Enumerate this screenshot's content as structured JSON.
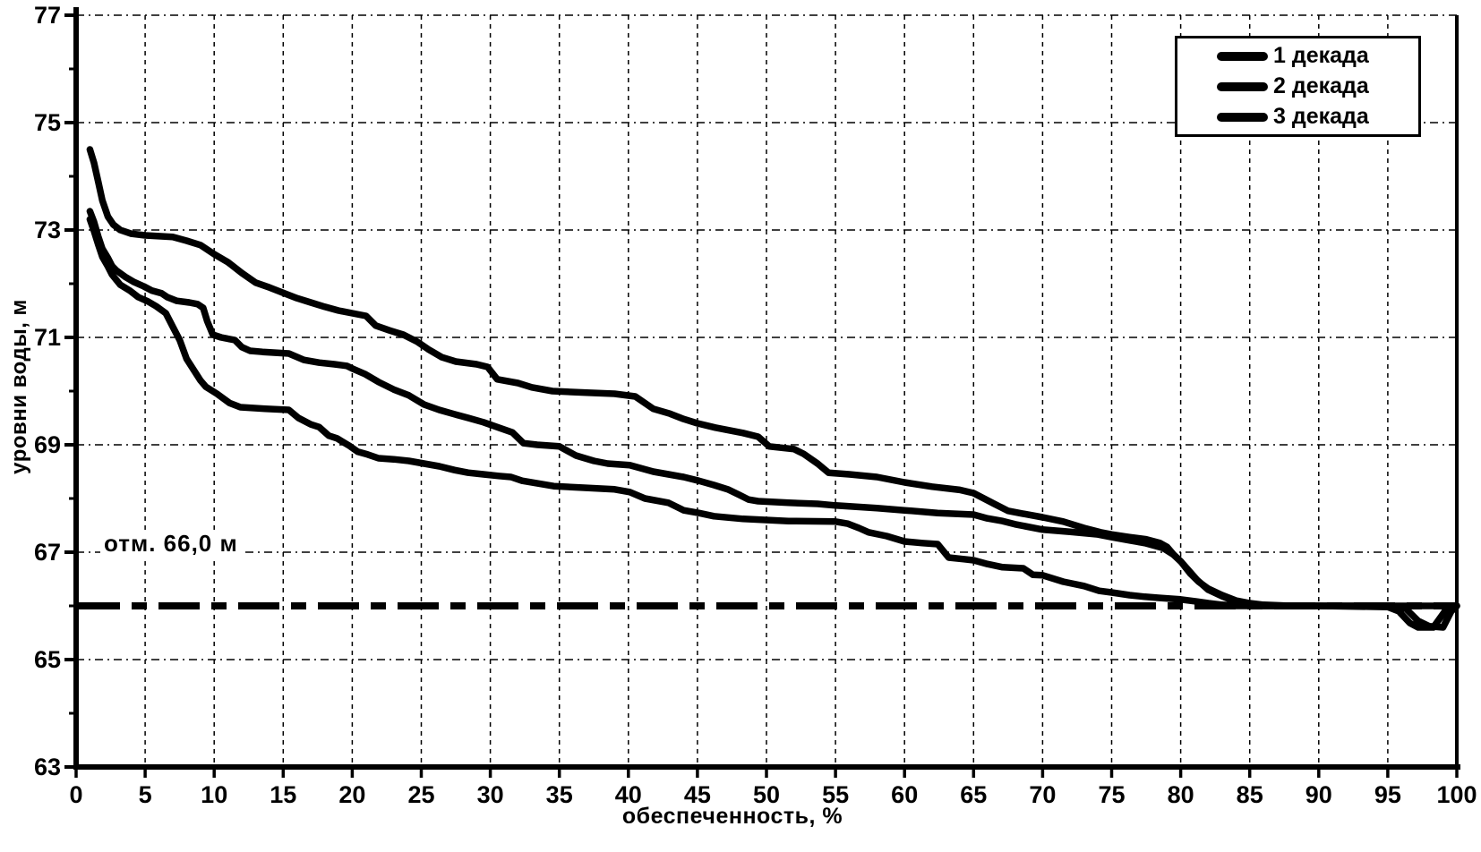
{
  "colors": {
    "line": "#000000",
    "background": "#ffffff",
    "grid": "#000000"
  },
  "chart_data": {
    "type": "line",
    "xlabel": "обеспеченность, %",
    "ylabel": "уровни воды, м",
    "xlim": [
      0,
      100
    ],
    "ylim": [
      63,
      77
    ],
    "x_ticks": [
      0,
      5,
      10,
      15,
      20,
      25,
      30,
      35,
      40,
      45,
      50,
      55,
      60,
      65,
      70,
      75,
      80,
      85,
      90,
      95,
      100
    ],
    "y_ticks": [
      63,
      65,
      67,
      69,
      71,
      73,
      75,
      77
    ],
    "y_minor_ticks": [
      64,
      66,
      68,
      70,
      72,
      74,
      76
    ],
    "grid": "both-dashed",
    "legend_position": "top-right",
    "ref_line": {
      "value": 66.0,
      "label": "отм. 66,0 м",
      "style": "dash-dot-bold"
    },
    "legend": {
      "items": [
        {
          "label": "1 декада"
        },
        {
          "label": "2 декада"
        },
        {
          "label": "3 декада"
        }
      ]
    },
    "series": [
      {
        "name": "1 декада",
        "points": [
          [
            1,
            74.5
          ],
          [
            1.3,
            74.25
          ],
          [
            1.6,
            73.9
          ],
          [
            1.9,
            73.55
          ],
          [
            2.3,
            73.25
          ],
          [
            2.7,
            73.1
          ],
          [
            3.2,
            73.0
          ],
          [
            4,
            72.93
          ],
          [
            5,
            72.9
          ],
          [
            7,
            72.87
          ],
          [
            8,
            72.8
          ],
          [
            9,
            72.72
          ],
          [
            10,
            72.55
          ],
          [
            11,
            72.4
          ],
          [
            12,
            72.2
          ],
          [
            13,
            72.02
          ],
          [
            14,
            71.93
          ],
          [
            15,
            71.83
          ],
          [
            16,
            71.73
          ],
          [
            17,
            71.65
          ],
          [
            18,
            71.57
          ],
          [
            19,
            71.5
          ],
          [
            20,
            71.45
          ],
          [
            21,
            71.4
          ],
          [
            21.7,
            71.22
          ],
          [
            22.7,
            71.13
          ],
          [
            23.7,
            71.05
          ],
          [
            24.7,
            70.92
          ],
          [
            25.5,
            70.78
          ],
          [
            26.5,
            70.63
          ],
          [
            27.5,
            70.55
          ],
          [
            29,
            70.5
          ],
          [
            29.8,
            70.45
          ],
          [
            30.5,
            70.22
          ],
          [
            32,
            70.15
          ],
          [
            33,
            70.07
          ],
          [
            34.5,
            70.0
          ],
          [
            37,
            69.97
          ],
          [
            39,
            69.95
          ],
          [
            40.5,
            69.9
          ],
          [
            41.8,
            69.67
          ],
          [
            43,
            69.58
          ],
          [
            44,
            69.48
          ],
          [
            45,
            69.4
          ],
          [
            46.3,
            69.32
          ],
          [
            48.3,
            69.22
          ],
          [
            49.4,
            69.15
          ],
          [
            50.2,
            68.97
          ],
          [
            52,
            68.92
          ],
          [
            52.7,
            68.83
          ],
          [
            53.7,
            68.65
          ],
          [
            54.5,
            68.48
          ],
          [
            56,
            68.45
          ],
          [
            58,
            68.4
          ],
          [
            60,
            68.3
          ],
          [
            62,
            68.22
          ],
          [
            64,
            68.16
          ],
          [
            65,
            68.1
          ],
          [
            66.5,
            67.9
          ],
          [
            67.5,
            67.77
          ],
          [
            68.5,
            67.72
          ],
          [
            70,
            67.65
          ],
          [
            71.5,
            67.57
          ],
          [
            73,
            67.45
          ],
          [
            74.2,
            67.37
          ],
          [
            75,
            67.33
          ],
          [
            76.3,
            67.28
          ],
          [
            77.5,
            67.24
          ],
          [
            78.5,
            67.17
          ],
          [
            79,
            67.1
          ],
          [
            79.5,
            66.95
          ],
          [
            80,
            66.83
          ],
          [
            80.7,
            66.6
          ],
          [
            81.3,
            66.45
          ],
          [
            82,
            66.32
          ],
          [
            83,
            66.2
          ],
          [
            84,
            66.1
          ],
          [
            85,
            66.05
          ],
          [
            86,
            66.02
          ],
          [
            88,
            66.0
          ],
          [
            100,
            66.0
          ]
        ]
      },
      {
        "name": "2 декада",
        "points": [
          [
            1,
            73.35
          ],
          [
            1.3,
            73.15
          ],
          [
            1.6,
            72.88
          ],
          [
            1.9,
            72.65
          ],
          [
            2.3,
            72.48
          ],
          [
            2.6,
            72.33
          ],
          [
            2.9,
            72.25
          ],
          [
            3.6,
            72.12
          ],
          [
            4.2,
            72.03
          ],
          [
            4.9,
            71.95
          ],
          [
            5.5,
            71.87
          ],
          [
            6.2,
            71.82
          ],
          [
            6.6,
            71.75
          ],
          [
            7.3,
            71.68
          ],
          [
            8.2,
            71.65
          ],
          [
            8.8,
            71.62
          ],
          [
            9.2,
            71.55
          ],
          [
            9.5,
            71.3
          ],
          [
            9.9,
            71.05
          ],
          [
            10.5,
            71.0
          ],
          [
            11.5,
            70.95
          ],
          [
            12,
            70.82
          ],
          [
            12.6,
            70.75
          ],
          [
            13.5,
            70.73
          ],
          [
            15.4,
            70.7
          ],
          [
            16.5,
            70.58
          ],
          [
            17.6,
            70.53
          ],
          [
            18.7,
            70.5
          ],
          [
            19.6,
            70.47
          ],
          [
            20,
            70.42
          ],
          [
            20.9,
            70.32
          ],
          [
            21.9,
            70.17
          ],
          [
            23,
            70.03
          ],
          [
            24.1,
            69.92
          ],
          [
            25.2,
            69.75
          ],
          [
            26.3,
            69.65
          ],
          [
            27.4,
            69.57
          ],
          [
            28.4,
            69.5
          ],
          [
            29.5,
            69.42
          ],
          [
            30.6,
            69.32
          ],
          [
            31.6,
            69.23
          ],
          [
            32.4,
            69.03
          ],
          [
            33.4,
            69.0
          ],
          [
            35,
            68.97
          ],
          [
            36.2,
            68.8
          ],
          [
            37.5,
            68.7
          ],
          [
            38.5,
            68.65
          ],
          [
            40.1,
            68.62
          ],
          [
            41.8,
            68.5
          ],
          [
            42.9,
            68.45
          ],
          [
            44,
            68.4
          ],
          [
            45.1,
            68.33
          ],
          [
            46.2,
            68.25
          ],
          [
            47.2,
            68.17
          ],
          [
            48,
            68.07
          ],
          [
            48.7,
            67.98
          ],
          [
            49.4,
            67.95
          ],
          [
            51.6,
            67.92
          ],
          [
            53.7,
            67.9
          ],
          [
            55,
            67.87
          ],
          [
            58,
            67.82
          ],
          [
            60,
            67.78
          ],
          [
            62.4,
            67.73
          ],
          [
            65,
            67.7
          ],
          [
            66,
            67.63
          ],
          [
            67.1,
            67.58
          ],
          [
            68,
            67.52
          ],
          [
            70,
            67.42
          ],
          [
            72,
            67.38
          ],
          [
            74,
            67.33
          ],
          [
            75,
            67.28
          ],
          [
            76.3,
            67.22
          ],
          [
            77.4,
            67.17
          ],
          [
            78.7,
            67.08
          ],
          [
            79.5,
            66.95
          ],
          [
            80,
            66.83
          ],
          [
            81.2,
            66.48
          ],
          [
            82,
            66.3
          ],
          [
            83,
            66.18
          ],
          [
            84,
            66.08
          ],
          [
            85,
            66.03
          ],
          [
            86,
            66.0
          ],
          [
            95,
            66.0
          ],
          [
            96.3,
            65.95
          ],
          [
            97.2,
            65.72
          ],
          [
            98,
            65.62
          ],
          [
            99,
            65.6
          ],
          [
            99.6,
            65.9
          ],
          [
            100,
            66.0
          ]
        ]
      },
      {
        "name": "3 декада",
        "points": [
          [
            1,
            73.2
          ],
          [
            1.3,
            72.98
          ],
          [
            1.6,
            72.73
          ],
          [
            1.9,
            72.5
          ],
          [
            2.3,
            72.32
          ],
          [
            2.6,
            72.17
          ],
          [
            3.2,
            71.98
          ],
          [
            3.9,
            71.87
          ],
          [
            4.5,
            71.75
          ],
          [
            5.2,
            71.67
          ],
          [
            5.8,
            71.58
          ],
          [
            6.5,
            71.45
          ],
          [
            7,
            71.2
          ],
          [
            7.5,
            70.95
          ],
          [
            8,
            70.6
          ],
          [
            8.5,
            70.4
          ],
          [
            9,
            70.2
          ],
          [
            9.4,
            70.08
          ],
          [
            10.2,
            69.95
          ],
          [
            11.1,
            69.78
          ],
          [
            11.9,
            69.7
          ],
          [
            13.7,
            69.67
          ],
          [
            15.4,
            69.65
          ],
          [
            16.1,
            69.5
          ],
          [
            17,
            69.38
          ],
          [
            17.6,
            69.33
          ],
          [
            18.3,
            69.17
          ],
          [
            18.9,
            69.12
          ],
          [
            19.8,
            68.98
          ],
          [
            20.4,
            68.87
          ],
          [
            21.1,
            68.82
          ],
          [
            21.9,
            68.75
          ],
          [
            23,
            68.73
          ],
          [
            24.1,
            68.7
          ],
          [
            25.2,
            68.65
          ],
          [
            26.3,
            68.6
          ],
          [
            27.4,
            68.53
          ],
          [
            28.4,
            68.48
          ],
          [
            29.5,
            68.45
          ],
          [
            30.6,
            68.42
          ],
          [
            31.5,
            68.4
          ],
          [
            32.3,
            68.33
          ],
          [
            34.6,
            68.23
          ],
          [
            36.8,
            68.2
          ],
          [
            39,
            68.17
          ],
          [
            40.1,
            68.12
          ],
          [
            41.2,
            68.0
          ],
          [
            42.9,
            67.92
          ],
          [
            44,
            67.78
          ],
          [
            45.1,
            67.73
          ],
          [
            46.2,
            67.67
          ],
          [
            48.3,
            67.62
          ],
          [
            51.6,
            67.58
          ],
          [
            55,
            67.57
          ],
          [
            55.9,
            67.53
          ],
          [
            56.7,
            67.45
          ],
          [
            57.4,
            67.37
          ],
          [
            58.7,
            67.3
          ],
          [
            60,
            67.2
          ],
          [
            61.3,
            67.17
          ],
          [
            62.4,
            67.15
          ],
          [
            63.2,
            66.9
          ],
          [
            64.3,
            66.87
          ],
          [
            65,
            66.85
          ],
          [
            66,
            66.78
          ],
          [
            67.1,
            66.72
          ],
          [
            68.6,
            66.7
          ],
          [
            69.3,
            66.58
          ],
          [
            70,
            66.57
          ],
          [
            71.5,
            66.45
          ],
          [
            73,
            66.37
          ],
          [
            74.1,
            66.28
          ],
          [
            75,
            66.25
          ],
          [
            76.3,
            66.2
          ],
          [
            77.4,
            66.17
          ],
          [
            78.4,
            66.15
          ],
          [
            80,
            66.12
          ],
          [
            81.2,
            66.08
          ],
          [
            82,
            66.05
          ],
          [
            83,
            66.02
          ],
          [
            84,
            66.0
          ],
          [
            90,
            66.0
          ],
          [
            95,
            65.98
          ],
          [
            95.8,
            65.9
          ],
          [
            96.6,
            65.68
          ],
          [
            97.2,
            65.6
          ],
          [
            98.3,
            65.6
          ],
          [
            99,
            65.85
          ],
          [
            99.4,
            66.0
          ],
          [
            100,
            66.0
          ]
        ]
      }
    ]
  }
}
